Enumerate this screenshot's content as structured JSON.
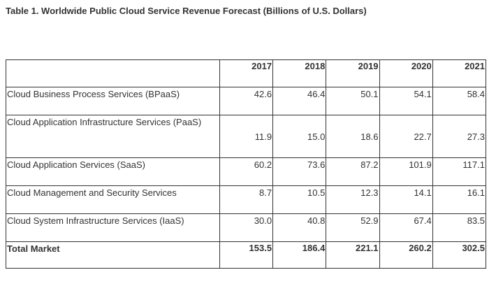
{
  "caption": "Table 1. Worldwide Public Cloud Service Revenue Forecast (Billions of U.S. Dollars)",
  "columns": [
    "",
    "2017",
    "2018",
    "2019",
    "2020",
    "2021"
  ],
  "rows": [
    {
      "label": "Cloud Business Process Services (BPaaS)",
      "values": [
        "42.6",
        "46.4",
        "50.1",
        "54.1",
        "58.4"
      ]
    },
    {
      "label": "Cloud Application Infrastructure Services (PaaS)",
      "values": [
        "11.9",
        "15.0",
        "18.6",
        "22.7",
        "27.3"
      ]
    },
    {
      "label": "Cloud Application Services (SaaS)",
      "values": [
        "60.2",
        "73.6",
        "87.2",
        "101.9",
        "117.1"
      ]
    },
    {
      "label": "Cloud Management and Security Services",
      "values": [
        "8.7",
        "10.5",
        "12.3",
        "14.1",
        "16.1"
      ]
    },
    {
      "label": "Cloud System Infrastructure Services (IaaS)",
      "values": [
        "30.0",
        "40.8",
        "52.9",
        "67.4",
        "83.5"
      ]
    }
  ],
  "total": {
    "label": "Total Market",
    "values": [
      "153.5",
      "186.4",
      "221.1",
      "260.2",
      "302.5"
    ]
  }
}
